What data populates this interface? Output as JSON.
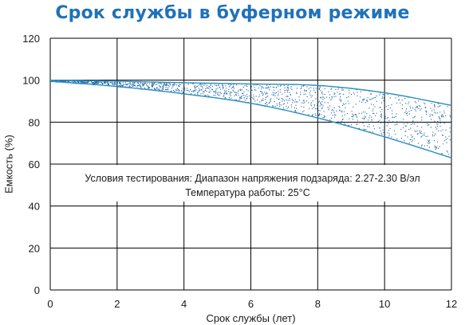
{
  "chart_data": {
    "type": "area",
    "title": "Срок службы в буферном режиме",
    "xlabel": "Срок службы (лет)",
    "ylabel": "Емкость (%)",
    "xlim": [
      0,
      12
    ],
    "ylim": [
      0,
      120
    ],
    "xticks": [
      0,
      2,
      4,
      6,
      8,
      10,
      12
    ],
    "yticks": [
      0,
      20,
      40,
      60,
      80,
      100,
      120
    ],
    "grid": true,
    "series": [
      {
        "values": [
          {
            "x": 0,
            "y": 100
          },
          {
            "x": 2,
            "y": 99.5
          },
          {
            "x": 4,
            "y": 98.8
          },
          {
            "x": 6,
            "y": 98.2
          },
          {
            "x": 8,
            "y": 97.5
          },
          {
            "x": 10,
            "y": 94
          },
          {
            "x": 12,
            "y": 88
          }
        ]
      },
      {
        "values": [
          {
            "x": 0,
            "y": 99.5
          },
          {
            "x": 2,
            "y": 97
          },
          {
            "x": 4,
            "y": 93.5
          },
          {
            "x": 6,
            "y": 89
          },
          {
            "x": 8,
            "y": 82
          },
          {
            "x": 10,
            "y": 73
          },
          {
            "x": 12,
            "y": 63
          }
        ]
      }
    ],
    "annotation": {
      "line1": "Условия тестирования: Диапазон напряжения подзаряда: 2.27-2.30 В/эл",
      "line2": "Температура работы: 25°C"
    },
    "colors": {
      "curve": "#2a8fc0",
      "band_dots": "#1b5fa8",
      "grid": "#000000",
      "title": "#1f72b8"
    }
  }
}
